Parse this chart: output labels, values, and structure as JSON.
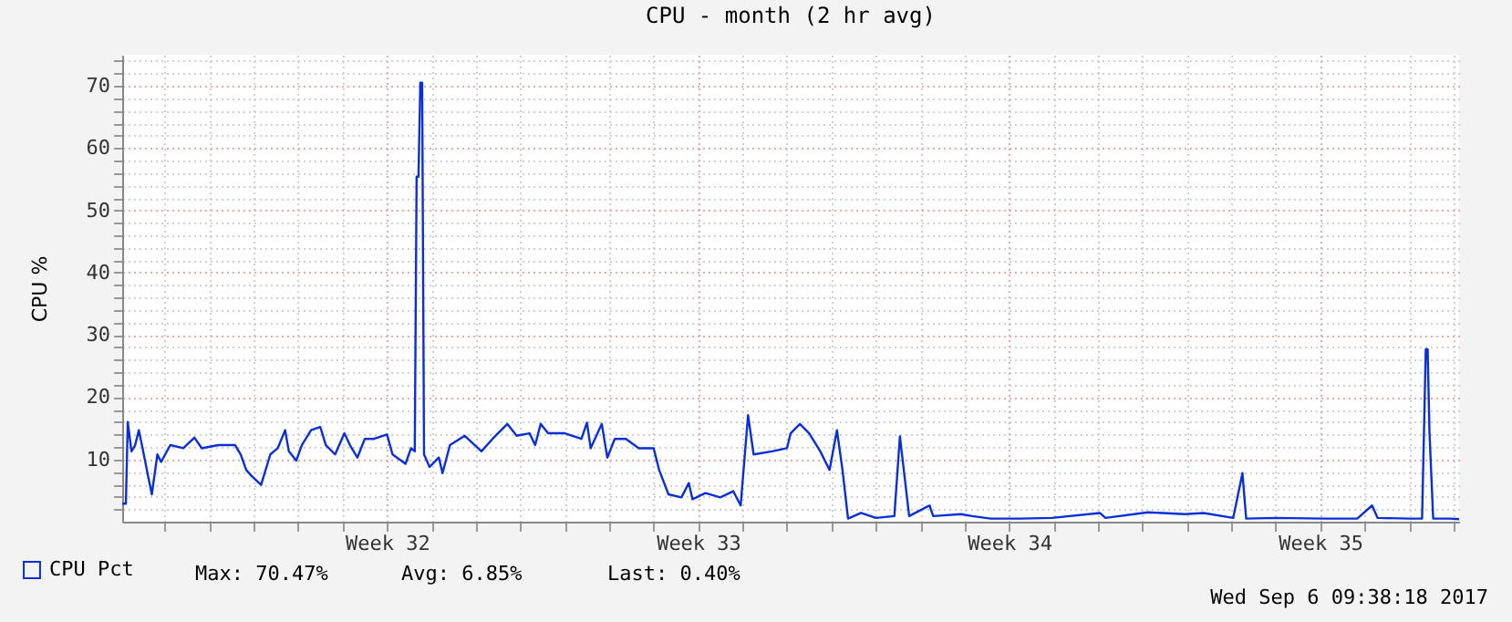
{
  "chart_data": {
    "type": "line",
    "title": "CPU - month (2 hr avg)",
    "ylabel": "CPU %",
    "x": [
      "2017-08-01T01:00",
      "2017-08-01T03:00",
      "2017-08-01T04:00",
      "2017-08-01T06:00",
      "2017-08-01T08:00",
      "2017-08-01T10:00",
      "2017-08-01T12:00",
      "2017-08-01T15:00",
      "2017-08-01T17:00",
      "2017-08-01T20:00",
      "2017-08-01T22:00",
      "2017-08-02T03:00",
      "2017-08-02T10:00",
      "2017-08-02T16:00",
      "2017-08-02T20:00",
      "2017-08-03T05:00",
      "2017-08-03T14:00",
      "2017-08-03T17:00",
      "2017-08-03T20:00",
      "2017-08-03T23:00",
      "2017-08-04T04:00",
      "2017-08-04T09:00",
      "2017-08-04T13:00",
      "2017-08-04T17:00",
      "2017-08-04T19:00",
      "2017-08-04T23:00",
      "2017-08-05T02:00",
      "2017-08-05T07:00",
      "2017-08-05T12:00",
      "2017-08-05T15:00",
      "2017-08-05T20:00",
      "2017-08-06T01:00",
      "2017-08-06T04:00",
      "2017-08-06T08:00",
      "2017-08-06T12:00",
      "2017-08-06T17:00",
      "2017-08-07T00:00",
      "2017-08-07T03:00",
      "2017-08-07T10:00",
      "2017-08-07T13:00",
      "2017-08-07T15:00",
      "2017-08-07T16:00",
      "2017-08-07T17:00",
      "2017-08-07T18:00",
      "2017-08-07T19:00",
      "2017-08-07T20:00",
      "2017-08-07T23:00",
      "2017-08-08T04:00",
      "2017-08-08T06:00",
      "2017-08-08T10:00",
      "2017-08-08T18:00",
      "2017-08-09T03:00",
      "2017-08-09T09:00",
      "2017-08-09T17:00",
      "2017-08-09T22:00",
      "2017-08-10T05:00",
      "2017-08-10T08:00",
      "2017-08-10T11:00",
      "2017-08-10T15:00",
      "2017-08-11T00:00",
      "2017-08-11T09:00",
      "2017-08-11T12:00",
      "2017-08-11T14:00",
      "2017-08-11T20:00",
      "2017-08-11T23:00",
      "2017-08-12T03:00",
      "2017-08-12T09:00",
      "2017-08-12T16:00",
      "2017-08-13T00:00",
      "2017-08-13T03:00",
      "2017-08-13T08:00",
      "2017-08-13T15:00",
      "2017-08-13T19:00",
      "2017-08-13T21:00",
      "2017-08-14T04:00",
      "2017-08-14T12:00",
      "2017-08-14T19:00",
      "2017-08-14T23:00",
      "2017-08-15T03:00",
      "2017-08-15T06:00",
      "2017-08-15T16:00",
      "2017-08-16T00:00",
      "2017-08-16T02:00",
      "2017-08-16T07:00",
      "2017-08-16T12:00",
      "2017-08-16T18:00",
      "2017-08-16T23:00",
      "2017-08-17T03:00",
      "2017-08-17T06:00",
      "2017-08-17T09:00",
      "2017-08-17T16:00",
      "2017-08-18T00:00",
      "2017-08-18T10:00",
      "2017-08-18T13:00",
      "2017-08-18T18:00",
      "2017-08-19T05:00",
      "2017-08-19T07:00",
      "2017-08-19T22:00",
      "2017-08-20T04:00",
      "2017-08-20T14:00",
      "2017-08-21T03:00",
      "2017-08-21T06:00",
      "2017-08-21T23:00",
      "2017-08-23T01:00",
      "2017-08-23T04:00",
      "2017-08-24T03:00",
      "2017-08-24T23:00",
      "2017-08-25T09:00",
      "2017-08-26T01:00",
      "2017-08-26T06:00",
      "2017-08-26T08:00",
      "2017-08-27T00:00",
      "2017-08-28T02:00",
      "2017-08-28T20:00",
      "2017-08-29T04:00",
      "2017-08-29T07:00",
      "2017-08-30T00:00",
      "2017-08-30T07:00",
      "2017-08-30T09:00",
      "2017-08-30T10:00",
      "2017-08-30T11:00",
      "2017-08-30T13:00",
      "2017-08-30T22:00",
      "2017-08-31T03:00"
    ],
    "series": [
      {
        "name": "CPU Pct",
        "color": "#0a2fd8",
        "values": [
          2.9,
          2.9,
          16.0,
          11.3,
          12.3,
          14.7,
          11.8,
          7.3,
          4.4,
          10.8,
          9.6,
          12.3,
          11.8,
          13.5,
          11.8,
          12.3,
          12.3,
          10.8,
          8.3,
          7.3,
          5.9,
          10.8,
          11.8,
          14.7,
          11.3,
          9.8,
          12.3,
          14.7,
          15.2,
          12.3,
          10.8,
          14.2,
          12.3,
          10.3,
          13.3,
          13.3,
          14.0,
          10.8,
          9.3,
          11.8,
          11.3,
          55.4,
          55.4,
          70.5,
          70.5,
          10.8,
          8.8,
          10.3,
          7.8,
          12.3,
          13.8,
          11.3,
          13.3,
          15.7,
          13.8,
          14.2,
          12.3,
          15.7,
          14.2,
          14.2,
          13.3,
          15.9,
          11.8,
          15.7,
          10.3,
          13.3,
          13.3,
          11.8,
          11.8,
          8.3,
          4.4,
          3.9,
          6.2,
          3.6,
          4.6,
          3.9,
          4.9,
          2.6,
          17.1,
          10.8,
          11.3,
          11.8,
          14.2,
          15.7,
          14.2,
          11.3,
          8.3,
          14.7,
          8.3,
          0.5,
          1.4,
          0.6,
          0.9,
          13.7,
          0.9,
          2.6,
          0.9,
          1.2,
          0.9,
          0.5,
          0.5,
          0.5,
          0.6,
          1.4,
          0.6,
          1.5,
          1.2,
          1.4,
          0.6,
          7.8,
          0.5,
          0.6,
          0.5,
          0.5,
          2.6,
          0.6,
          0.5,
          0.5,
          27.7,
          27.7,
          14.4,
          0.5,
          0.5,
          0.4
        ]
      }
    ],
    "xlim": [
      "2017-08-01T01:00",
      "2017-08-31T03:00"
    ],
    "xticks": [
      {
        "value": "2017-08-02",
        "label": null
      },
      {
        "value": "2017-08-03",
        "label": null
      },
      {
        "value": "2017-08-04",
        "label": null
      },
      {
        "value": "2017-08-05",
        "label": null
      },
      {
        "value": "2017-08-06",
        "label": null
      },
      {
        "value": "2017-08-07",
        "label": "Week 32"
      },
      {
        "value": "2017-08-08",
        "label": null
      },
      {
        "value": "2017-08-09",
        "label": null
      },
      {
        "value": "2017-08-10",
        "label": null
      },
      {
        "value": "2017-08-11",
        "label": null
      },
      {
        "value": "2017-08-12",
        "label": null
      },
      {
        "value": "2017-08-13",
        "label": null
      },
      {
        "value": "2017-08-14",
        "label": "Week 33"
      },
      {
        "value": "2017-08-15",
        "label": null
      },
      {
        "value": "2017-08-16",
        "label": null
      },
      {
        "value": "2017-08-17",
        "label": null
      },
      {
        "value": "2017-08-18",
        "label": null
      },
      {
        "value": "2017-08-19",
        "label": null
      },
      {
        "value": "2017-08-20",
        "label": null
      },
      {
        "value": "2017-08-21",
        "label": "Week 34"
      },
      {
        "value": "2017-08-22",
        "label": null
      },
      {
        "value": "2017-08-23",
        "label": null
      },
      {
        "value": "2017-08-24",
        "label": null
      },
      {
        "value": "2017-08-25",
        "label": null
      },
      {
        "value": "2017-08-26",
        "label": null
      },
      {
        "value": "2017-08-27",
        "label": null
      },
      {
        "value": "2017-08-28",
        "label": "Week 35"
      },
      {
        "value": "2017-08-29",
        "label": null
      },
      {
        "value": "2017-08-30",
        "label": null
      },
      {
        "value": "2017-08-31",
        "label": null
      }
    ],
    "ylim": [
      0,
      75
    ],
    "yticks": [
      {
        "value": 2,
        "label": null
      },
      {
        "value": 4,
        "label": null
      },
      {
        "value": 6,
        "label": null
      },
      {
        "value": 8,
        "label": null
      },
      {
        "value": 10,
        "label": "10"
      },
      {
        "value": 12,
        "label": null
      },
      {
        "value": 14,
        "label": null
      },
      {
        "value": 16,
        "label": null
      },
      {
        "value": 18,
        "label": null
      },
      {
        "value": 20,
        "label": "20"
      },
      {
        "value": 22,
        "label": null
      },
      {
        "value": 24,
        "label": null
      },
      {
        "value": 26,
        "label": null
      },
      {
        "value": 28,
        "label": null
      },
      {
        "value": 30,
        "label": "30"
      },
      {
        "value": 32,
        "label": null
      },
      {
        "value": 34,
        "label": null
      },
      {
        "value": 36,
        "label": null
      },
      {
        "value": 38,
        "label": null
      },
      {
        "value": 40,
        "label": "40"
      },
      {
        "value": 42,
        "label": null
      },
      {
        "value": 44,
        "label": null
      },
      {
        "value": 46,
        "label": null
      },
      {
        "value": 48,
        "label": null
      },
      {
        "value": 50,
        "label": "50"
      },
      {
        "value": 52,
        "label": null
      },
      {
        "value": 54,
        "label": null
      },
      {
        "value": 56,
        "label": null
      },
      {
        "value": 58,
        "label": null
      },
      {
        "value": 60,
        "label": "60"
      },
      {
        "value": 62,
        "label": null
      },
      {
        "value": 64,
        "label": null
      },
      {
        "value": 66,
        "label": null
      },
      {
        "value": 68,
        "label": null
      },
      {
        "value": 70,
        "label": "70"
      },
      {
        "value": 72,
        "label": null
      },
      {
        "value": 74,
        "label": null
      }
    ],
    "grid": true,
    "legend": "bottom left",
    "marker": "none",
    "line_style": "solid",
    "annotations": [
      "Max:   70.47%",
      "Avg:    6.85%",
      "Last:    0.40%",
      "Wed Sep  6 09:38:18 2017"
    ]
  }
}
